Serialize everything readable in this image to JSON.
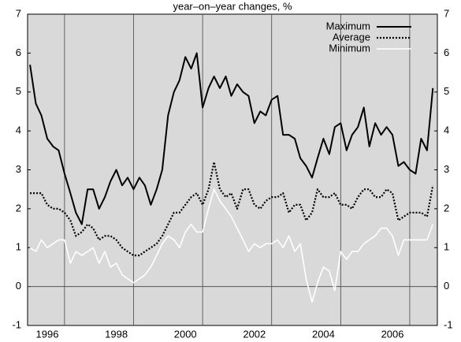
{
  "chart_data": {
    "type": "line",
    "title": "year–on–year changes, %",
    "x": [
      1996,
      1996.17,
      1996.33,
      1996.5,
      1996.67,
      1996.83,
      1997,
      1997.17,
      1997.33,
      1997.5,
      1997.67,
      1997.83,
      1998,
      1998.17,
      1998.33,
      1998.5,
      1998.67,
      1998.83,
      1999,
      1999.17,
      1999.33,
      1999.5,
      1999.67,
      1999.83,
      2000,
      2000.17,
      2000.33,
      2000.5,
      2000.67,
      2000.83,
      2001,
      2001.17,
      2001.33,
      2001.5,
      2001.67,
      2001.83,
      2002,
      2002.17,
      2002.33,
      2002.5,
      2002.67,
      2002.83,
      2003,
      2003.17,
      2003.33,
      2003.5,
      2003.67,
      2003.83,
      2004,
      2004.17,
      2004.33,
      2004.5,
      2004.67,
      2004.83,
      2005,
      2005.17,
      2005.33,
      2005.5,
      2005.67,
      2005.83,
      2006,
      2006.17,
      2006.33,
      2006.5,
      2006.67,
      2006.83,
      2007,
      2007.17,
      2007.33,
      2007.5,
      2007.67
    ],
    "series": [
      {
        "name": "Maximum",
        "color": "#000000",
        "line_style": "solid",
        "values": [
          5.7,
          4.7,
          4.4,
          3.8,
          3.6,
          3.5,
          2.9,
          2.4,
          1.9,
          1.6,
          2.5,
          2.5,
          2.0,
          2.3,
          2.7,
          3.0,
          2.6,
          2.8,
          2.5,
          2.8,
          2.6,
          2.1,
          2.5,
          3.0,
          4.4,
          5.0,
          5.3,
          5.9,
          5.6,
          6.0,
          4.6,
          5.1,
          5.4,
          5.1,
          5.4,
          4.9,
          5.2,
          5.0,
          4.9,
          4.2,
          4.5,
          4.4,
          4.8,
          4.9,
          3.9,
          3.9,
          3.8,
          3.3,
          3.1,
          2.8,
          3.3,
          3.8,
          3.4,
          4.1,
          4.2,
          3.5,
          3.9,
          4.1,
          4.6,
          3.6,
          4.2,
          3.9,
          4.1,
          3.9,
          3.1,
          3.2,
          3.0,
          2.9,
          3.8,
          3.5,
          5.1
        ]
      },
      {
        "name": "Average",
        "color": "#000000",
        "line_style": "dotted",
        "values": [
          2.4,
          2.4,
          2.4,
          2.1,
          2.0,
          2.0,
          1.9,
          1.7,
          1.3,
          1.4,
          1.6,
          1.5,
          1.2,
          1.3,
          1.3,
          1.2,
          1.0,
          0.9,
          0.8,
          0.8,
          0.9,
          1.0,
          1.1,
          1.3,
          1.6,
          1.9,
          1.9,
          2.1,
          2.3,
          2.4,
          2.1,
          2.5,
          3.2,
          2.5,
          2.3,
          2.4,
          2.0,
          2.5,
          2.5,
          2.1,
          2.0,
          2.2,
          2.3,
          2.3,
          2.4,
          1.9,
          2.1,
          2.1,
          1.7,
          1.9,
          2.5,
          2.3,
          2.3,
          2.4,
          2.1,
          2.1,
          2.0,
          2.3,
          2.5,
          2.5,
          2.3,
          2.3,
          2.5,
          2.4,
          1.7,
          1.8,
          1.9,
          1.9,
          1.9,
          1.8,
          2.6
        ]
      },
      {
        "name": "Minimum",
        "color": "#ffffff",
        "line_style": "solid",
        "values": [
          1.0,
          0.9,
          1.2,
          1.0,
          1.1,
          1.2,
          1.2,
          0.6,
          0.9,
          0.8,
          0.9,
          1.0,
          0.6,
          0.9,
          0.5,
          0.6,
          0.3,
          0.2,
          0.1,
          0.2,
          0.3,
          0.5,
          0.8,
          1.1,
          1.3,
          1.2,
          1.0,
          1.4,
          1.6,
          1.4,
          1.4,
          2.0,
          2.5,
          2.2,
          2.0,
          1.8,
          1.5,
          1.2,
          0.9,
          1.1,
          1.0,
          1.1,
          1.1,
          1.2,
          1.0,
          1.3,
          0.9,
          1.1,
          0.2,
          -0.4,
          0.1,
          0.5,
          0.4,
          -0.1,
          0.9,
          0.7,
          0.9,
          0.9,
          1.1,
          1.2,
          1.3,
          1.5,
          1.5,
          1.3,
          0.8,
          1.2,
          1.2,
          1.2,
          1.2,
          1.2,
          1.6
        ]
      }
    ],
    "xlim": [
      1995.93,
      2007.8
    ],
    "xticks": [
      {
        "value": 1996.5,
        "label": "1996"
      },
      {
        "value": 1998.5,
        "label": "1998"
      },
      {
        "value": 2000.5,
        "label": "2000"
      },
      {
        "value": 2002.5,
        "label": "2002"
      },
      {
        "value": 2004.5,
        "label": "2004"
      },
      {
        "value": 2006.5,
        "label": "2006"
      }
    ],
    "xgrid": [
      1997,
      1999,
      2001,
      2003,
      2005,
      2007
    ],
    "ylim": [
      -1,
      7
    ],
    "yticks": [
      -1,
      0,
      1,
      2,
      3,
      4,
      5,
      6,
      7
    ],
    "legend": "top-right",
    "background": "#d9d9d9"
  }
}
